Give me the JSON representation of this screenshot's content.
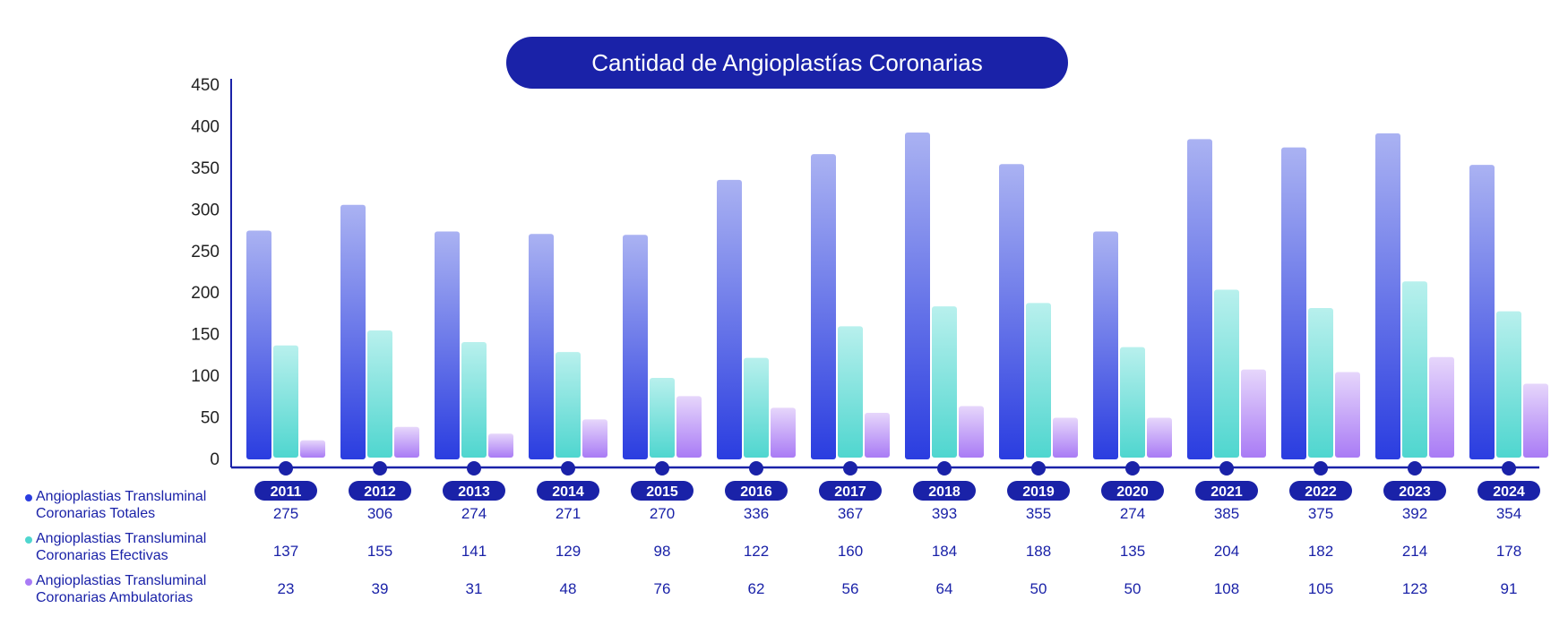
{
  "chart_data": {
    "type": "bar",
    "title": "Cantidad de Angioplastías Coronarias",
    "categories": [
      "2011",
      "2012",
      "2013",
      "2014",
      "2015",
      "2016",
      "2017",
      "2018",
      "2019",
      "2020",
      "2021",
      "2022",
      "2023",
      "2024"
    ],
    "ylim": [
      0,
      450
    ],
    "yticks": [
      0,
      50,
      100,
      150,
      200,
      250,
      300,
      350,
      400,
      450
    ],
    "series": [
      {
        "name": "Angioplastias Transluminal Coronarias Totales",
        "line1": "Angioplastias Transluminal",
        "line2": "Coronarias Totales",
        "color": "#2a3de0",
        "top": "#aab2f2",
        "values": [
          275,
          306,
          274,
          271,
          270,
          336,
          367,
          393,
          355,
          274,
          385,
          375,
          392,
          354
        ]
      },
      {
        "name": "Angioplastias Transluminal Coronarias Efectivas",
        "line1": "Angioplastias Transluminal",
        "line2": "Coronarias Efectivas",
        "color": "#4fd6cf",
        "top": "#b8f0ed",
        "values": [
          137,
          155,
          141,
          129,
          98,
          122,
          160,
          184,
          188,
          135,
          204,
          182,
          214,
          178
        ]
      },
      {
        "name": "Angioplastias Transluminal Coronarias Ambulatorias",
        "line1": "Angioplastias Transluminal",
        "line2": "Coronarias Ambulatorias",
        "color": "#a97bf5",
        "top": "#e6d6fb",
        "values": [
          23,
          39,
          31,
          48,
          76,
          62,
          56,
          64,
          50,
          50,
          108,
          105,
          123,
          91
        ]
      }
    ]
  },
  "colors": {
    "primary": "#1a22a8"
  }
}
